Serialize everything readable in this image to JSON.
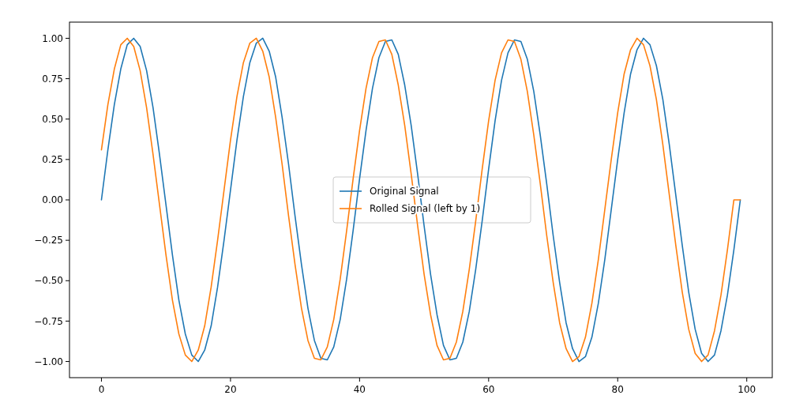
{
  "chart_data": {
    "type": "line",
    "x": [
      0,
      1,
      2,
      3,
      4,
      5,
      6,
      7,
      8,
      9,
      10,
      11,
      12,
      13,
      14,
      15,
      16,
      17,
      18,
      19,
      20,
      21,
      22,
      23,
      24,
      25,
      26,
      27,
      28,
      29,
      30,
      31,
      32,
      33,
      34,
      35,
      36,
      37,
      38,
      39,
      40,
      41,
      42,
      43,
      44,
      45,
      46,
      47,
      48,
      49,
      50,
      51,
      52,
      53,
      54,
      55,
      56,
      57,
      58,
      59,
      60,
      61,
      62,
      63,
      64,
      65,
      66,
      67,
      68,
      69,
      70,
      71,
      72,
      73,
      74,
      75,
      76,
      77,
      78,
      79,
      80,
      81,
      82,
      83,
      84,
      85,
      86,
      87,
      88,
      89,
      90,
      91,
      92,
      93,
      94,
      95,
      96,
      97,
      98,
      99
    ],
    "series": [
      {
        "name": "Original Signal",
        "color": "#1f77b4",
        "values": [
          0,
          0.31,
          0.59,
          0.81,
          0.96,
          1,
          0.95,
          0.8,
          0.57,
          0.28,
          -0.03,
          -0.34,
          -0.62,
          -0.83,
          -0.96,
          -1,
          -0.93,
          -0.78,
          -0.54,
          -0.25,
          0.06,
          0.37,
          0.64,
          0.85,
          0.97,
          1,
          0.92,
          0.76,
          0.51,
          0.22,
          -0.1,
          -0.4,
          -0.67,
          -0.87,
          -0.98,
          -0.99,
          -0.91,
          -0.74,
          -0.49,
          -0.19,
          0.13,
          0.43,
          0.69,
          0.88,
          0.98,
          0.99,
          0.9,
          0.71,
          0.46,
          0.16,
          -0.16,
          -0.46,
          -0.71,
          -0.9,
          -0.99,
          -0.98,
          -0.88,
          -0.69,
          -0.43,
          -0.13,
          0.19,
          0.49,
          0.74,
          0.91,
          0.99,
          0.98,
          0.87,
          0.67,
          0.4,
          0.1,
          -0.22,
          -0.51,
          -0.76,
          -0.92,
          -1,
          -0.97,
          -0.85,
          -0.64,
          -0.37,
          -0.06,
          0.25,
          0.54,
          0.78,
          0.93,
          1,
          0.96,
          0.83,
          0.62,
          0.34,
          0.03,
          -0.28,
          -0.57,
          -0.8,
          -0.95,
          -1,
          -0.96,
          -0.81,
          -0.59,
          -0.31,
          0
        ]
      },
      {
        "name": "Rolled Signal (left by 1)",
        "color": "#ff7f0e",
        "values": [
          0.31,
          0.59,
          0.81,
          0.96,
          1,
          0.95,
          0.8,
          0.57,
          0.28,
          -0.03,
          -0.34,
          -0.62,
          -0.83,
          -0.96,
          -1,
          -0.93,
          -0.78,
          -0.54,
          -0.25,
          0.06,
          0.37,
          0.64,
          0.85,
          0.97,
          1,
          0.92,
          0.76,
          0.51,
          0.22,
          -0.1,
          -0.4,
          -0.67,
          -0.87,
          -0.98,
          -0.99,
          -0.91,
          -0.74,
          -0.49,
          -0.19,
          0.13,
          0.43,
          0.69,
          0.88,
          0.98,
          0.99,
          0.9,
          0.71,
          0.46,
          0.16,
          -0.16,
          -0.46,
          -0.71,
          -0.9,
          -0.99,
          -0.98,
          -0.88,
          -0.69,
          -0.43,
          -0.13,
          0.19,
          0.49,
          0.74,
          0.91,
          0.99,
          0.98,
          0.87,
          0.67,
          0.4,
          0.1,
          -0.22,
          -0.51,
          -0.76,
          -0.92,
          -1,
          -0.97,
          -0.85,
          -0.64,
          -0.37,
          -0.06,
          0.25,
          0.54,
          0.78,
          0.93,
          1,
          0.96,
          0.83,
          0.62,
          0.34,
          0.03,
          -0.28,
          -0.57,
          -0.8,
          -0.95,
          -1,
          -0.96,
          -0.81,
          -0.59,
          -0.31,
          0,
          0
        ]
      }
    ],
    "xlim": [
      -4.95,
      103.95
    ],
    "xticks": [
      0,
      20,
      40,
      60,
      80,
      100
    ],
    "ylim": [
      -1.1,
      1.1
    ],
    "yticks": [
      {
        "value": -1,
        "label": "−1.00"
      },
      {
        "value": -0.75,
        "label": "−0.75"
      },
      {
        "value": -0.5,
        "label": "−0.50"
      },
      {
        "value": -0.25,
        "label": "−0.25"
      },
      {
        "value": 0,
        "label": "0.00"
      },
      {
        "value": 0.25,
        "label": "0.25"
      },
      {
        "value": 0.5,
        "label": "0.50"
      },
      {
        "value": 0.75,
        "label": "0.75"
      },
      {
        "value": 1,
        "label": "1.00"
      }
    ],
    "legend": "center",
    "grid": false,
    "marker": "none",
    "line_style": "solid"
  }
}
